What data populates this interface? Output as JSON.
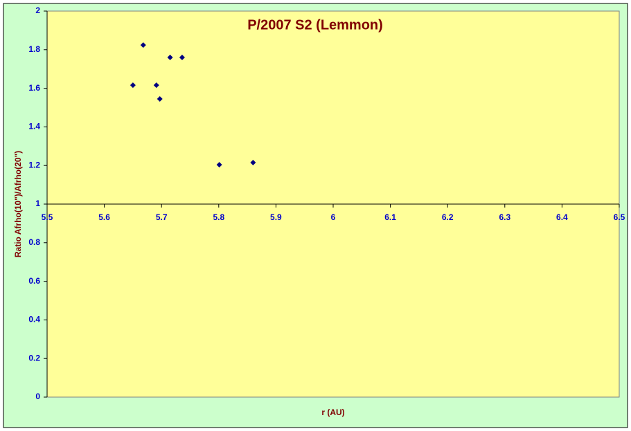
{
  "chart_data": {
    "type": "scatter",
    "title": "P/2007 S2 (Lemmon)",
    "x_label": "r (AU)",
    "y_label": "Ratio Afrho(10\")/Afrho(20\")",
    "series": [
      {
        "name": "Ratio",
        "color": "#000080",
        "x": [
          5.65,
          5.668,
          5.691,
          5.697,
          5.715,
          5.736,
          5.801,
          5.86
        ],
        "values": [
          1.616,
          1.824,
          1.616,
          1.545,
          1.76,
          1.76,
          1.204,
          1.215
        ]
      }
    ],
    "xlim": [
      5.5,
      6.5
    ],
    "xticks": [
      5.5,
      5.6,
      5.7,
      5.8,
      5.9,
      6,
      6.1,
      6.2,
      6.3,
      6.4,
      6.5
    ],
    "ylim": [
      0,
      2
    ],
    "yticks": [
      0,
      0.2,
      0.4,
      0.6,
      0.8,
      1,
      1.2,
      1.4,
      1.6,
      1.8,
      2
    ],
    "x_axis_crosses_at": 1,
    "grid": false,
    "legend": false
  }
}
